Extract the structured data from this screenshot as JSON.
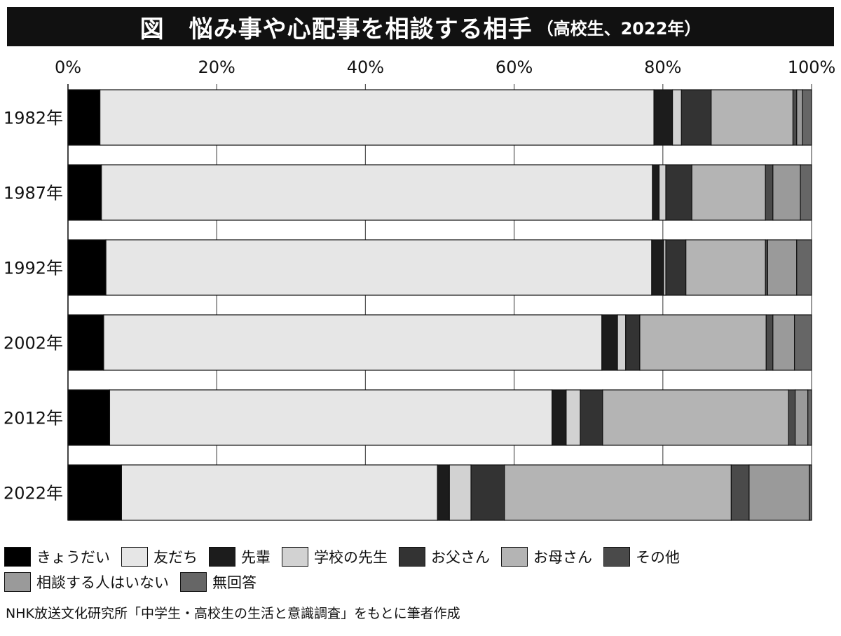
{
  "title": "図　悩み事や心配事を相談する相手",
  "subtitle": "（高校生、2022年）",
  "source": "NHK放送文化研究所「中学生・高校生の生活と意識調査」をもとに筆者作成",
  "chart_data": {
    "type": "bar",
    "orientation": "horizontal",
    "stacked": true,
    "percent": true,
    "title": "図　悩み事や心配事を相談する相手（高校生、2022年）",
    "xlabel": "",
    "ylabel": "",
    "xlim": [
      0,
      100
    ],
    "x_ticks": [
      "0%",
      "20%",
      "40%",
      "60%",
      "80%",
      "100%"
    ],
    "grid": "vertical",
    "legend_position": "bottom",
    "categories": [
      "1982年",
      "1987年",
      "1992年",
      "2002年",
      "2012年",
      "2022年"
    ],
    "series": [
      {
        "name": "きょうだい",
        "color": "#000000",
        "values": [
          4.3,
          4.5,
          5.1,
          4.8,
          5.6,
          7.2
        ]
      },
      {
        "name": "友だち",
        "color": "#e6e6e6",
        "values": [
          74.5,
          74.1,
          73.4,
          67.0,
          59.5,
          42.5
        ]
      },
      {
        "name": "先輩",
        "color": "#1c1c1c",
        "values": [
          2.5,
          0.9,
          1.6,
          2.1,
          1.9,
          1.6
        ]
      },
      {
        "name": "学校の先生",
        "color": "#d2d2d2",
        "values": [
          1.2,
          0.9,
          0.3,
          1.1,
          1.9,
          2.9
        ]
      },
      {
        "name": "お父さん",
        "color": "#333333",
        "values": [
          4.0,
          3.5,
          2.7,
          1.9,
          3.0,
          4.5
        ]
      },
      {
        "name": "お母さん",
        "color": "#b4b4b4",
        "values": [
          11.0,
          9.9,
          10.7,
          17.0,
          25.0,
          30.5
        ]
      },
      {
        "name": "その他",
        "color": "#4a4a4a",
        "values": [
          0.5,
          1.0,
          0.3,
          0.9,
          0.9,
          2.4
        ]
      },
      {
        "name": "相談する人はいない",
        "color": "#9a9a9a",
        "values": [
          0.8,
          3.7,
          3.9,
          2.9,
          1.7,
          8.1
        ]
      },
      {
        "name": "無回答",
        "color": "#666666",
        "values": [
          1.2,
          1.5,
          2.0,
          2.3,
          0.5,
          0.3
        ]
      }
    ]
  }
}
